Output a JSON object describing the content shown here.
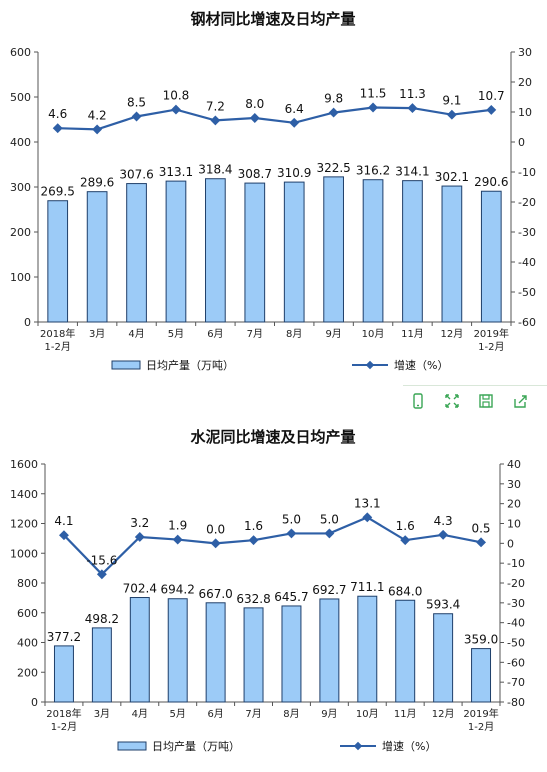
{
  "chart_data": [
    {
      "type": "bar+line",
      "title": "钢材同比增速及日均产量",
      "categories": [
        "2018年\n1-2月",
        "3月",
        "4月",
        "5月",
        "6月",
        "7月",
        "8月",
        "9月",
        "10月",
        "11月",
        "12月",
        "2019年\n1-2月"
      ],
      "series": [
        {
          "name": "日均产量（万吨）",
          "type": "bar",
          "axis": "left",
          "values": [
            269.5,
            289.6,
            307.6,
            313.1,
            318.4,
            308.7,
            310.9,
            322.5,
            316.2,
            314.1,
            302.1,
            290.6
          ],
          "labels": [
            "269.5",
            "289.6",
            "307.6",
            "313.1",
            "318.4",
            "308.7",
            "310.9",
            "322.5",
            "316.2",
            "314.1",
            "302.1",
            "290.6"
          ]
        },
        {
          "name": "增速（%）",
          "type": "line",
          "axis": "right",
          "values": [
            4.6,
            4.2,
            8.5,
            10.8,
            7.2,
            8.0,
            6.4,
            9.8,
            11.5,
            11.3,
            9.1,
            10.7
          ],
          "labels": [
            "4.6",
            "4.2",
            "8.5",
            "10.8",
            "7.2",
            "8.0",
            "6.4",
            "9.8",
            "11.5",
            "11.3",
            "9.1",
            "10.7"
          ]
        }
      ],
      "ylim": [
        0,
        600
      ],
      "yticks": [
        "0",
        "100",
        "200",
        "300",
        "400",
        "500",
        "600"
      ],
      "y2lim": [
        -60,
        30
      ],
      "y2ticks": [
        "-60",
        "-50",
        "-40",
        "-30",
        "-20",
        "-10",
        "0",
        "10",
        "20",
        "30"
      ],
      "legend_position": "bottom",
      "colors": {
        "bar": "#9ccbf7",
        "bar_stroke": "#1f3f6a",
        "line": "#2e5fa6"
      }
    },
    {
      "type": "bar+line",
      "title": "水泥同比增速及日均产量",
      "categories": [
        "2018年\n1-2月",
        "3月",
        "4月",
        "5月",
        "6月",
        "7月",
        "8月",
        "9月",
        "10月",
        "11月",
        "12月",
        "2019年\n1-2月"
      ],
      "series": [
        {
          "name": "日均产量（万吨）",
          "type": "bar",
          "axis": "left",
          "values": [
            377.2,
            498.2,
            702.4,
            694.2,
            667.0,
            632.8,
            645.7,
            692.7,
            711.1,
            684.0,
            593.4,
            359.0
          ],
          "labels": [
            "377.2",
            "498.2",
            "702.4",
            "694.2",
            "667.0",
            "632.8",
            "645.7",
            "692.7",
            "711.1",
            "684.0",
            "593.4",
            "359.0"
          ]
        },
        {
          "name": "增速（%）",
          "type": "line",
          "axis": "right",
          "values": [
            4.1,
            -15.6,
            3.2,
            1.9,
            0.0,
            1.6,
            5.0,
            5.0,
            13.1,
            1.6,
            4.3,
            0.5
          ],
          "labels": [
            "4.1",
            "-15.6",
            "3.2",
            "1.9",
            "0.0",
            "1.6",
            "5.0",
            "5.0",
            "13.1",
            "1.6",
            "4.3",
            "0.5"
          ]
        }
      ],
      "ylim": [
        0,
        1600
      ],
      "yticks": [
        "0",
        "200",
        "400",
        "600",
        "800",
        "1000",
        "1200",
        "1400",
        "1600"
      ],
      "y2lim": [
        -80,
        40
      ],
      "y2ticks": [
        "-80",
        "-70",
        "-60",
        "-50",
        "-40",
        "-30",
        "-20",
        "-10",
        "0",
        "10",
        "20",
        "30",
        "40"
      ],
      "legend_position": "bottom",
      "colors": {
        "bar": "#9ccbf7",
        "bar_stroke": "#1f3f6a",
        "line": "#2e5fa6"
      }
    }
  ],
  "toolbar": {
    "icons": [
      "mobile-icon",
      "fullscreen-icon",
      "save-icon",
      "share-icon",
      "more-icon"
    ]
  }
}
